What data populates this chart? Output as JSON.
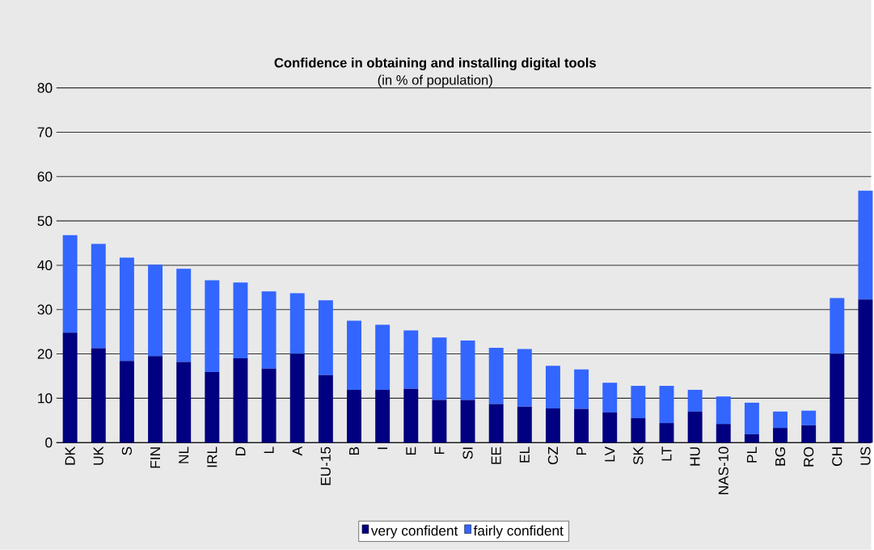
{
  "chart_data": {
    "type": "bar",
    "title": "Confidence in obtaining and installing digital tools",
    "subtitle": "(in % of population)",
    "categories": [
      "DK",
      "UK",
      "S",
      "FIN",
      "NL",
      "IRL",
      "D",
      "L",
      "A",
      "EU-15",
      "B",
      "I",
      "E",
      "F",
      "SI",
      "EE",
      "EL",
      "CZ",
      "P",
      "LV",
      "SK",
      "LT",
      "HU",
      "NAS-10",
      "PL",
      "BG",
      "RO",
      "CH",
      "US"
    ],
    "stacked": true,
    "series": [
      {
        "name": "very confident",
        "color": "#000080",
        "values": [
          24.8,
          21.3,
          18.4,
          19.5,
          18.2,
          15.9,
          19.0,
          16.7,
          20.0,
          15.2,
          11.9,
          11.9,
          12.1,
          9.6,
          9.6,
          8.7,
          8.1,
          7.7,
          7.6,
          6.8,
          5.5,
          4.4,
          7.0,
          4.2,
          1.9,
          3.3,
          3.9,
          20.0,
          32.3
        ]
      },
      {
        "name": "fairly confident",
        "color": "#3366ff",
        "values": [
          22.0,
          23.5,
          23.3,
          20.6,
          21.0,
          20.7,
          17.1,
          17.4,
          13.7,
          16.9,
          15.6,
          14.7,
          13.2,
          14.1,
          13.4,
          12.7,
          13.0,
          9.6,
          8.9,
          6.7,
          7.3,
          8.4,
          4.9,
          6.2,
          7.1,
          3.7,
          3.3,
          12.6,
          24.5
        ]
      }
    ],
    "ylim": [
      0,
      80
    ],
    "yticks": [
      0,
      10,
      20,
      30,
      40,
      50,
      60,
      70,
      80
    ],
    "grid": "y",
    "legend": "bottom"
  }
}
